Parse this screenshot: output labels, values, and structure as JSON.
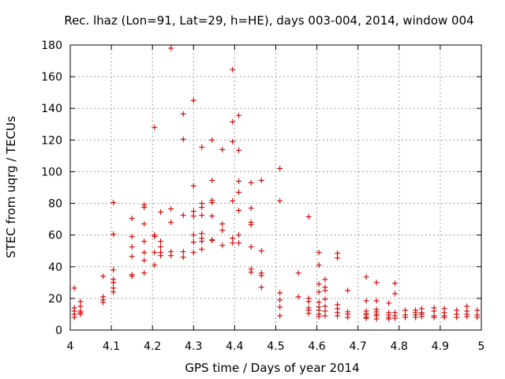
{
  "chart_data": {
    "type": "scatter",
    "title": "Rec. lhaz (Lon=91, Lat=29, h=HE), days 003-004, 2014, window 004",
    "xlabel": "GPS time / Days of year 2014",
    "ylabel": "STEC from uqrg / TECUs",
    "xlim": [
      4,
      5
    ],
    "ylim": [
      0,
      180
    ],
    "xticks": [
      "4",
      "4.1",
      "4.2",
      "4.3",
      "4.4",
      "4.5",
      "4.6",
      "4.7",
      "4.8",
      "4.9",
      "5"
    ],
    "yticks": [
      "0",
      "20",
      "40",
      "60",
      "80",
      "100",
      "120",
      "140",
      "160",
      "180"
    ],
    "grid": true,
    "marker": "plus",
    "color": "#cc0000",
    "series": [
      {
        "points": [
          [
            4.01,
            26.5
          ],
          [
            4.01,
            14
          ],
          [
            4.01,
            12
          ],
          [
            4.01,
            10
          ],
          [
            4.01,
            8
          ],
          [
            4.025,
            18
          ],
          [
            4.025,
            15
          ],
          [
            4.025,
            12
          ],
          [
            4.025,
            11
          ],
          [
            4.025,
            10
          ],
          [
            4.08,
            34
          ],
          [
            4.08,
            21
          ],
          [
            4.08,
            19
          ],
          [
            4.08,
            17.5
          ],
          [
            4.105,
            80.5
          ],
          [
            4.105,
            60.5
          ],
          [
            4.105,
            38
          ],
          [
            4.105,
            32
          ],
          [
            4.105,
            30
          ],
          [
            4.105,
            26.5
          ],
          [
            4.105,
            24
          ],
          [
            4.15,
            70.5
          ],
          [
            4.15,
            59
          ],
          [
            4.15,
            52.5
          ],
          [
            4.15,
            46.5
          ],
          [
            4.15,
            35
          ],
          [
            4.15,
            34
          ],
          [
            4.18,
            79
          ],
          [
            4.18,
            77.5
          ],
          [
            4.18,
            67
          ],
          [
            4.18,
            56
          ],
          [
            4.18,
            49
          ],
          [
            4.18,
            44
          ],
          [
            4.18,
            36
          ],
          [
            4.205,
            128
          ],
          [
            4.205,
            60
          ],
          [
            4.205,
            59
          ],
          [
            4.205,
            49
          ],
          [
            4.205,
            41
          ],
          [
            4.22,
            74.5
          ],
          [
            4.22,
            56
          ],
          [
            4.22,
            52.5
          ],
          [
            4.22,
            49
          ],
          [
            4.22,
            47
          ],
          [
            4.245,
            178
          ],
          [
            4.245,
            76.5
          ],
          [
            4.245,
            68
          ],
          [
            4.245,
            49.5
          ],
          [
            4.245,
            47
          ],
          [
            4.275,
            136.5
          ],
          [
            4.275,
            120.5
          ],
          [
            4.275,
            72.5
          ],
          [
            4.275,
            49.5
          ],
          [
            4.275,
            46
          ],
          [
            4.3,
            145
          ],
          [
            4.3,
            91
          ],
          [
            4.3,
            75
          ],
          [
            4.3,
            72
          ],
          [
            4.3,
            60
          ],
          [
            4.3,
            55.5
          ],
          [
            4.3,
            49
          ],
          [
            4.32,
            115.5
          ],
          [
            4.32,
            80
          ],
          [
            4.32,
            77.5
          ],
          [
            4.32,
            72.5
          ],
          [
            4.32,
            61
          ],
          [
            4.32,
            58
          ],
          [
            4.32,
            56
          ],
          [
            4.32,
            51
          ],
          [
            4.345,
            120
          ],
          [
            4.345,
            94.5
          ],
          [
            4.345,
            82
          ],
          [
            4.345,
            80.5
          ],
          [
            4.345,
            72
          ],
          [
            4.345,
            57
          ],
          [
            4.345,
            56.5
          ],
          [
            4.37,
            114
          ],
          [
            4.37,
            67
          ],
          [
            4.37,
            63
          ],
          [
            4.37,
            53.5
          ],
          [
            4.395,
            164.5
          ],
          [
            4.395,
            131.5
          ],
          [
            4.395,
            119
          ],
          [
            4.395,
            81.5
          ],
          [
            4.395,
            58
          ],
          [
            4.395,
            55
          ],
          [
            4.41,
            135.5
          ],
          [
            4.41,
            113.5
          ],
          [
            4.41,
            94
          ],
          [
            4.41,
            87
          ],
          [
            4.41,
            75.5
          ],
          [
            4.41,
            60
          ],
          [
            4.41,
            55
          ],
          [
            4.44,
            93
          ],
          [
            4.44,
            77
          ],
          [
            4.44,
            68
          ],
          [
            4.44,
            66.5
          ],
          [
            4.44,
            52.5
          ],
          [
            4.44,
            38.5
          ],
          [
            4.44,
            36.5
          ],
          [
            4.465,
            94.5
          ],
          [
            4.465,
            50
          ],
          [
            4.465,
            36
          ],
          [
            4.465,
            34.5
          ],
          [
            4.465,
            27
          ],
          [
            4.51,
            102
          ],
          [
            4.51,
            81.5
          ],
          [
            4.51,
            23.5
          ],
          [
            4.51,
            19
          ],
          [
            4.51,
            14.5
          ],
          [
            4.51,
            9
          ],
          [
            4.555,
            36
          ],
          [
            4.555,
            21
          ],
          [
            4.58,
            71.5
          ],
          [
            4.58,
            20
          ],
          [
            4.58,
            18
          ],
          [
            4.58,
            14
          ],
          [
            4.58,
            12.5
          ],
          [
            4.58,
            10.5
          ],
          [
            4.605,
            49
          ],
          [
            4.605,
            41
          ],
          [
            4.605,
            29
          ],
          [
            4.605,
            24
          ],
          [
            4.605,
            17.5
          ],
          [
            4.605,
            14.5
          ],
          [
            4.605,
            12.5
          ],
          [
            4.605,
            10
          ],
          [
            4.605,
            8.5
          ],
          [
            4.62,
            32
          ],
          [
            4.62,
            27
          ],
          [
            4.62,
            25
          ],
          [
            4.62,
            19.5
          ],
          [
            4.62,
            15
          ],
          [
            4.62,
            12
          ],
          [
            4.62,
            9
          ],
          [
            4.65,
            48.5
          ],
          [
            4.65,
            45.5
          ],
          [
            4.65,
            16
          ],
          [
            4.65,
            13.5
          ],
          [
            4.65,
            11
          ],
          [
            4.65,
            9
          ],
          [
            4.675,
            25
          ],
          [
            4.675,
            11.5
          ],
          [
            4.675,
            10
          ],
          [
            4.675,
            8
          ],
          [
            4.72,
            33.5
          ],
          [
            4.72,
            18.5
          ],
          [
            4.72,
            12
          ],
          [
            4.72,
            10.5
          ],
          [
            4.72,
            9.5
          ],
          [
            4.72,
            8
          ],
          [
            4.72,
            7.5
          ],
          [
            4.745,
            30
          ],
          [
            4.745,
            18.5
          ],
          [
            4.745,
            13
          ],
          [
            4.745,
            11.5
          ],
          [
            4.745,
            10
          ],
          [
            4.745,
            9
          ],
          [
            4.745,
            7
          ],
          [
            4.775,
            17
          ],
          [
            4.775,
            11
          ],
          [
            4.775,
            9.5
          ],
          [
            4.775,
            8
          ],
          [
            4.775,
            7
          ],
          [
            4.79,
            29.5
          ],
          [
            4.79,
            23
          ],
          [
            4.79,
            11
          ],
          [
            4.79,
            9
          ],
          [
            4.79,
            7.5
          ],
          [
            4.815,
            12.5
          ],
          [
            4.815,
            9.5
          ],
          [
            4.815,
            8
          ],
          [
            4.84,
            12.5
          ],
          [
            4.84,
            11
          ],
          [
            4.84,
            9.5
          ],
          [
            4.84,
            8
          ],
          [
            4.855,
            13.5
          ],
          [
            4.855,
            11
          ],
          [
            4.855,
            10
          ],
          [
            4.855,
            8.5
          ],
          [
            4.885,
            14
          ],
          [
            4.885,
            12
          ],
          [
            4.885,
            9
          ],
          [
            4.885,
            8
          ],
          [
            4.91,
            13.5
          ],
          [
            4.91,
            11
          ],
          [
            4.91,
            9
          ],
          [
            4.91,
            8
          ],
          [
            4.94,
            12.5
          ],
          [
            4.94,
            10
          ],
          [
            4.94,
            8
          ],
          [
            4.965,
            15
          ],
          [
            4.965,
            12
          ],
          [
            4.965,
            10
          ],
          [
            4.965,
            8.5
          ],
          [
            4.99,
            12.5
          ],
          [
            4.99,
            9.5
          ],
          [
            4.99,
            8
          ]
        ]
      }
    ]
  }
}
